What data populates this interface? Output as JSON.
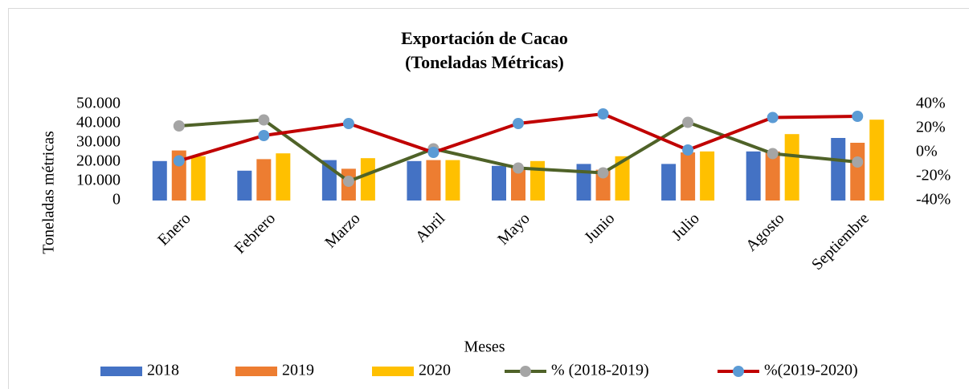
{
  "chart_data": {
    "type": "bar",
    "title": "Exportación de Cacao",
    "subtitle": "(Toneladas Métricas)",
    "y_label": "Toneladas métricas",
    "x_label": "Meses",
    "categories": [
      "Enero",
      "Febrero",
      "Marzo",
      "Abril",
      "Mayo",
      "Junio",
      "Julio",
      "Agosto",
      "Septiembre"
    ],
    "ylim": [
      0,
      50000
    ],
    "yticks": [
      0,
      {
        "value": 10000,
        "label": "10.000"
      },
      {
        "value": 20000,
        "label": "20.000"
      },
      {
        "value": 30000,
        "label": "30.000"
      },
      {
        "value": 40000,
        "label": "40.000"
      },
      {
        "value": 50000,
        "label": "50.000"
      }
    ],
    "y2lim": [
      -40,
      40
    ],
    "y2ticks": [
      {
        "value": -40,
        "label": "-40%"
      },
      {
        "value": -20,
        "label": "-20%"
      },
      {
        "value": 0,
        "label": "0%"
      },
      {
        "value": 20,
        "label": "20%"
      },
      {
        "value": 40,
        "label": "40%"
      }
    ],
    "series": [
      {
        "name": "2018",
        "color": "#4472c4",
        "values": [
          20500,
          15500,
          21000,
          20500,
          18000,
          19000,
          19000,
          25500,
          32500
        ]
      },
      {
        "name": "2019",
        "color": "#ed7d31",
        "values": [
          26000,
          21500,
          16500,
          21000,
          17000,
          16000,
          25000,
          25500,
          30000
        ]
      },
      {
        "name": "2020",
        "color": "#ffc000",
        "values": [
          23000,
          24500,
          22000,
          21000,
          20500,
          23000,
          25500,
          34500,
          42000
        ]
      },
      {
        "name": "% (2018-2019)",
        "color": "#4f6228",
        "marker_color": "#a5a5a5",
        "axis": "y2",
        "type": "line",
        "values": [
          22,
          27,
          -24,
          3,
          -13,
          -17,
          25,
          -1,
          -8
        ]
      },
      {
        "name": "%(2019-2020)",
        "color": "#c00000",
        "marker_color": "#5b9bd5",
        "axis": "y2",
        "type": "line",
        "values": [
          -7,
          14,
          24,
          0,
          24,
          32,
          2,
          29,
          30
        ]
      }
    ]
  }
}
